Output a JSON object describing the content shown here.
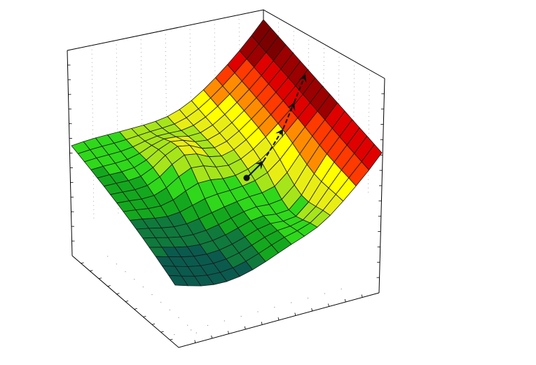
{
  "figure": {
    "kind": "3d-surface-plot",
    "colormap": [
      "#0b5a4e",
      "#0f7a3c",
      "#14a81e",
      "#2fd81a",
      "#a6e51a",
      "#e8ee14",
      "#ffff00",
      "#ff8c00",
      "#ff3a00",
      "#e00000",
      "#9c0000",
      "#7d0000"
    ],
    "frame_color": "#000000",
    "grid_color": "#8a8a8a",
    "mesh_color": "#1a1a1a",
    "path_color": "#111111",
    "grid": true,
    "path": {
      "start_marker": "dot",
      "end_marker": "arrowhead",
      "steps": 4
    }
  }
}
